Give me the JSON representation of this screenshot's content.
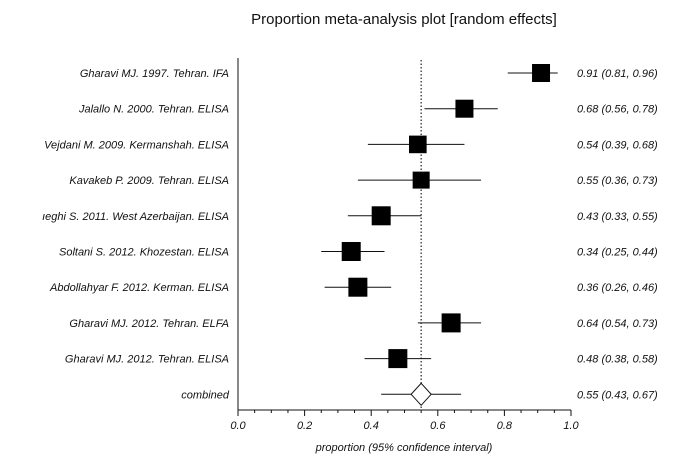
{
  "chart_data": {
    "type": "forest",
    "title": "Proportion meta-analysis plot [random effects]",
    "xlabel": "proportion (95% confidence interval)",
    "xlim": [
      0.0,
      1.0
    ],
    "x_ticks": [
      "0.0",
      "0.2",
      "0.4",
      "0.6",
      "0.8",
      "1.0"
    ],
    "reference_line": 0.55,
    "studies": [
      {
        "label": "Gharavi MJ. 1997. Tehran. IFA",
        "estimate": 0.91,
        "lower": 0.81,
        "upper": 0.96,
        "ci_text": "0.91 (0.81, 0.96)",
        "weight": 0.9
      },
      {
        "label": "Jalallo N. 2000. Tehran. ELISA",
        "estimate": 0.68,
        "lower": 0.56,
        "upper": 0.78,
        "ci_text": "0.68 (0.56, 0.78)",
        "weight": 0.9
      },
      {
        "label": "Vejdani M. 2009. Kermanshah. ELISA",
        "estimate": 0.54,
        "lower": 0.39,
        "upper": 0.68,
        "ci_text": "0.54 (0.39, 0.68)",
        "weight": 0.88
      },
      {
        "label": "Kavakeb P. 2009. Tehran. ELISA",
        "estimate": 0.55,
        "lower": 0.36,
        "upper": 0.73,
        "ci_text": "0.55 (0.36, 0.73)",
        "weight": 0.85
      },
      {
        "label": "ıeghi S. 2011. West Azerbaijan. ELISA",
        "estimate": 0.43,
        "lower": 0.33,
        "upper": 0.55,
        "ci_text": "0.43 (0.33, 0.55)",
        "weight": 0.95
      },
      {
        "label": "Soltani S. 2012. Khozestan. ELISA",
        "estimate": 0.34,
        "lower": 0.25,
        "upper": 0.44,
        "ci_text": "0.34 (0.25, 0.44)",
        "weight": 0.95
      },
      {
        "label": "Abdollahyar F. 2012. Kerman. ELISA",
        "estimate": 0.36,
        "lower": 0.26,
        "upper": 0.46,
        "ci_text": "0.36 (0.26, 0.46)",
        "weight": 0.95
      },
      {
        "label": "Gharavi MJ. 2012. Tehran. ELFA",
        "estimate": 0.64,
        "lower": 0.54,
        "upper": 0.73,
        "ci_text": "0.64 (0.54, 0.73)",
        "weight": 0.95
      },
      {
        "label": "Gharavi MJ. 2012. Tehran. ELISA",
        "estimate": 0.48,
        "lower": 0.38,
        "upper": 0.58,
        "ci_text": "0.48 (0.38, 0.58)",
        "weight": 0.95
      }
    ],
    "combined": {
      "label": "combined",
      "estimate": 0.55,
      "lower": 0.43,
      "upper": 0.67,
      "ci_text": "0.55 (0.43, 0.67)"
    }
  }
}
